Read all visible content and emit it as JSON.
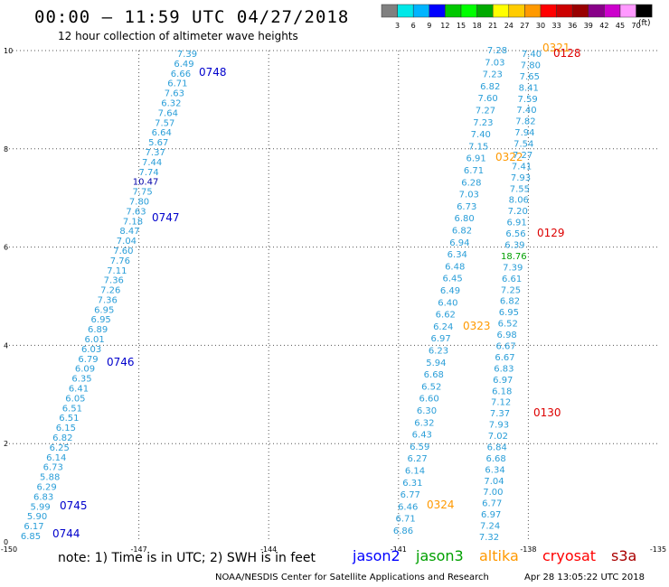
{
  "header": {
    "title": "00:00 – 11:59 UTC 04/27/2018",
    "subtitle": "12 hour collection of altimeter wave heights"
  },
  "scale": {
    "unit": "(ft)",
    "colors": [
      "#808080",
      "#00e8e8",
      "#00b4ff",
      "#0000ff",
      "#00c800",
      "#00ff00",
      "#00aa00",
      "#ffff00",
      "#ffcc00",
      "#ff9900",
      "#ff0000",
      "#cc0000",
      "#990000",
      "#880088",
      "#cc00cc",
      "#ff99ff",
      "#000000"
    ],
    "labels": [
      "3",
      "6",
      "9",
      "12",
      "15",
      "18",
      "21",
      "24",
      "27",
      "30",
      "33",
      "36",
      "39",
      "42",
      "45",
      "70"
    ]
  },
  "map": {
    "lon_labels": [
      "-150",
      "-147",
      "-144",
      "-141",
      "-138",
      "-135"
    ],
    "lat_labels": [
      "0",
      "2",
      "4",
      "6",
      "8",
      "10"
    ]
  },
  "tracks": [
    {
      "satellite": "jason2",
      "color": "#2a9ed8",
      "values": [
        "7.39",
        "6.49",
        "6.66",
        "6.71",
        "7.63",
        "6.32",
        "7.64",
        "7.57",
        "6.64",
        "5.67",
        "7.37",
        "7.44",
        "7.74",
        "10.47",
        "7.75",
        "7.80",
        "7.63",
        "7.18",
        "8.47",
        "7.04",
        "7.60",
        "7.76",
        "7.11",
        "7.36",
        "7.26",
        "7.36",
        "6.95",
        "6.95",
        "6.89",
        "6.01",
        "6.03",
        "6.79",
        "6.09",
        "6.35",
        "6.41",
        "6.05",
        "6.51",
        "6.51",
        "6.15",
        "6.82",
        "6.25",
        "6.14",
        "6.73",
        "5.88",
        "6.29",
        "6.83",
        "5.99",
        "5.90",
        "6.17",
        "6.85"
      ],
      "highlights": {
        "13": "#0000aa"
      },
      "times": [
        {
          "label": "0748",
          "index": 2
        },
        {
          "label": "0747",
          "index": 17
        },
        {
          "label": "0746",
          "index": 32
        },
        {
          "label": "0745",
          "index": 46
        },
        {
          "label": "0744",
          "index": 49
        }
      ]
    },
    {
      "satellite": "altika",
      "color": "#2a9ed8",
      "values": [
        "7.28",
        "7.03",
        "7.23",
        "6.82",
        "7.60",
        "7.27",
        "7.23",
        "7.40",
        "7.15",
        "6.91",
        "6.71",
        "6.28",
        "7.03",
        "6.73",
        "6.80",
        "6.82",
        "6.94",
        "6.34",
        "6.48",
        "6.45",
        "6.49",
        "6.40",
        "6.62",
        "6.24",
        "6.97",
        "6.23",
        "5.94",
        "6.68",
        "6.52",
        "6.60",
        "6.30",
        "6.32",
        "6.43",
        "6.59",
        "6.27",
        "6.14",
        "6.31",
        "6.77",
        "6.46",
        "6.71",
        "6.86"
      ],
      "highlights": {},
      "times": [
        {
          "label": "0321",
          "index": 0
        },
        {
          "label": "0322",
          "index": 10
        },
        {
          "label": "0323",
          "index": 23
        },
        {
          "label": "0324",
          "index": 38
        }
      ]
    },
    {
      "satellite": "cryosat",
      "color": "#2a9ed8",
      "values": [
        "7.40",
        "7.80",
        "7.65",
        "8.41",
        "7.59",
        "7.40",
        "7.82",
        "7.94",
        "7.54",
        "7.27",
        "7.41",
        "7.93",
        "7.55",
        "8.06",
        "7.20",
        "6.91",
        "6.56",
        "6.39",
        "18.76",
        "7.39",
        "6.61",
        "7.25",
        "6.82",
        "6.95",
        "6.52",
        "6.98",
        "6.67",
        "6.67",
        "6.83",
        "6.97",
        "6.18",
        "7.12",
        "7.37",
        "7.93",
        "7.02",
        "6.84",
        "6.68",
        "6.34",
        "7.04",
        "7.00",
        "6.77",
        "6.97",
        "7.24",
        "7.32"
      ],
      "highlights": {
        "18": "#00a000"
      },
      "times": [
        {
          "label": "0128",
          "index": 0
        },
        {
          "label": "0129",
          "index": 16
        },
        {
          "label": "0130",
          "index": 32
        }
      ]
    }
  ],
  "note": "note:  1) Time is in UTC;  2) SWH is in feet",
  "legend": [
    {
      "name": "jason2",
      "color": "#0000ff"
    },
    {
      "name": "jason3",
      "color": "#00a000"
    },
    {
      "name": "altika",
      "color": "#ff9900"
    },
    {
      "name": "cryosat",
      "color": "#ff0000"
    },
    {
      "name": "s3a",
      "color": "#aa0000"
    }
  ],
  "footer": {
    "credit": "NOAA/NESDIS Center for Satellite Applications and Research",
    "timestamp": "Apr 28 13:05:22 UTC 2018"
  }
}
